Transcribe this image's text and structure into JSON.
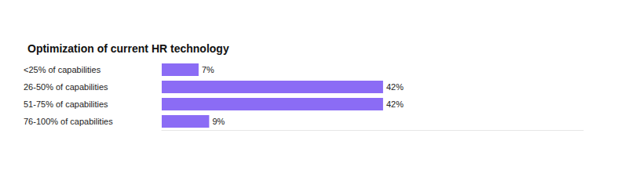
{
  "chart_data": {
    "type": "bar",
    "orientation": "horizontal",
    "title": "Optimization of current HR technology",
    "categories": [
      "<25% of capabilities",
      "26-50% of capabilities",
      "51-75% of capabilities",
      "76-100% of capabilities"
    ],
    "values": [
      7,
      42,
      42,
      9
    ],
    "value_labels": [
      "7%",
      "42%",
      "42%",
      "9%"
    ],
    "color": "#8b6cf5",
    "xlim": [
      0,
      80
    ],
    "grid": false,
    "data_labels": true,
    "tick_labels": "y"
  }
}
